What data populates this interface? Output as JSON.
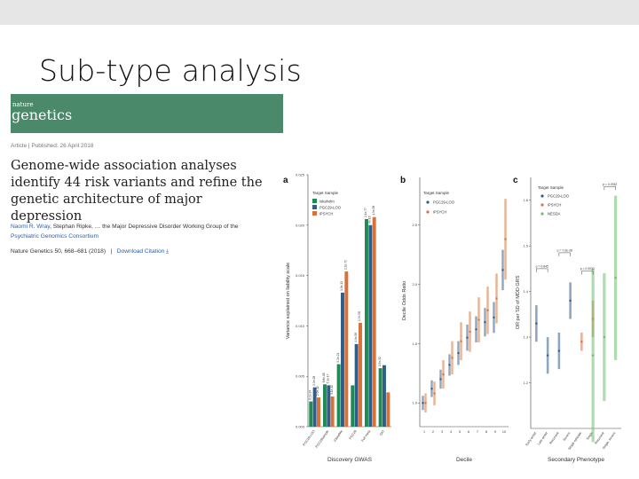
{
  "slide": {
    "title": "Sub-type analysis"
  },
  "paper": {
    "journal_small": "nature",
    "journal_name": "genetics",
    "meta": "Article  |  Published: 26 April 2018",
    "title": "Genome-wide association analyses identify 44 risk variants and refine the genetic architecture of major depression",
    "authors_prefix": "Naomi R. Wray",
    "authors_mid": ", Stephan Ripke, … the Major Depressive Disorder Working Group of the",
    "consortium": "Psychiatric Genomics Consortium",
    "journal_ref": "Nature Genetics 50, 668–681 (2018)",
    "download": "Download Citation ⤓"
  },
  "colors": {
    "banner": "#4a8a6a",
    "green": "#1f8a52",
    "blue": "#2e5f8a",
    "orange": "#d9723a"
  },
  "panels": {
    "a": {
      "letter": "a"
    },
    "b": {
      "letter": "b"
    },
    "c": {
      "letter": "c"
    }
  },
  "chart_data": [
    {
      "type": "bar",
      "panel": "a",
      "xlabel": "Discovery GWAS",
      "ylabel": "Variance explained on liability scale",
      "ylim": [
        0,
        0.025
      ],
      "yticks": [
        "0.000",
        "0.005",
        "0.010",
        "0.015",
        "0.020",
        "0.025"
      ],
      "legend_title": "Target Sample",
      "legend_position": "top-left",
      "categories": [
        "PGC29-LOO",
        "PGC29sample",
        "23andMe",
        "PGC29",
        "Full meta",
        "GIO"
      ],
      "series": [
        {
          "name": "Iskaholm",
          "color": "#1f8a52",
          "values": [
            0.0025,
            0.0042,
            0.0062,
            0.0041,
            0.0206,
            0.0058
          ]
        },
        {
          "name": "PGC29-LOO",
          "color": "#2e5f8a",
          "values": [
            0.0039,
            0.0041,
            0.0133,
            0.0082,
            0.02,
            0.0061
          ]
        },
        {
          "name": "iPSYCH",
          "color": "#d9723a",
          "values": [
            0.0029,
            0.003,
            0.0154,
            0.0103,
            0.0208,
            0.0034
          ]
        }
      ],
      "annotations": [
        "6.2e-24",
        "9.9e-28",
        "2.9e-12",
        "8.8e-08",
        "5.1e-17",
        "3.1e-42",
        "5.2e-21",
        "1.5e-13",
        "2.2e-72",
        "4.9e-58",
        "1.7e-58",
        "2.1e-77",
        "4e-16",
        "1.9e-38",
        "2.5e-32"
      ]
    },
    {
      "type": "scatter",
      "panel": "b",
      "xlabel": "Decile",
      "ylabel": "Decile Odds Ratio",
      "xlim": [
        0.5,
        10.5
      ],
      "ylim": [
        0.8,
        2.9
      ],
      "yticks": [
        "1.0",
        "1.5",
        "2.0",
        "2.5"
      ],
      "legend_title": "Target Sample",
      "legend_position": "top-left",
      "x": [
        1,
        2,
        3,
        4,
        5,
        6,
        7,
        8,
        9,
        10
      ],
      "series": [
        {
          "name": "PGC29-LOO",
          "color": "#2e5f8a",
          "values": [
            1.0,
            1.12,
            1.2,
            1.32,
            1.42,
            1.55,
            1.62,
            1.68,
            1.72,
            2.12
          ],
          "err": [
            0.06,
            0.07,
            0.08,
            0.09,
            0.1,
            0.11,
            0.11,
            0.12,
            0.13,
            0.17
          ]
        },
        {
          "name": "iPSYCH",
          "color": "#d9723a",
          "values": [
            1.0,
            1.08,
            1.24,
            1.38,
            1.52,
            1.6,
            1.7,
            1.78,
            1.88,
            2.38
          ],
          "err": [
            0.08,
            0.1,
            0.12,
            0.14,
            0.16,
            0.17,
            0.19,
            0.2,
            0.21,
            0.34
          ]
        }
      ]
    },
    {
      "type": "scatter",
      "panel": "c",
      "xlabel": "Secondary Phenotype",
      "ylabel": "OR per SD of MDD GRS",
      "ylim": [
        1.1,
        1.65
      ],
      "yticks": [
        "1.2",
        "1.3",
        "1.4",
        "1.5",
        "1.6"
      ],
      "legend_title": "Target Sample",
      "legend_position": "top-left",
      "categories": [
        "Early onset",
        "Late onset",
        "Recurrent",
        "Severe",
        "Single episode",
        "Single",
        "Recurrent",
        "Single, severe"
      ],
      "series": [
        {
          "name": "PGC29-LOO",
          "color": "#2e5f8a",
          "points": [
            {
              "cat": 0,
              "value": 1.33,
              "err": 0.04
            },
            {
              "cat": 1,
              "value": 1.26,
              "err": 0.04
            },
            {
              "cat": 2,
              "value": 1.27,
              "err": 0.04
            },
            {
              "cat": 3,
              "value": 1.38,
              "err": 0.04
            }
          ]
        },
        {
          "name": "iPSYCH",
          "color": "#d9723a",
          "points": [
            {
              "cat": 4,
              "value": 1.29,
              "err": 0.02
            },
            {
              "cat": 5,
              "value": 1.34,
              "err": 0.04
            }
          ]
        },
        {
          "name": "NESDA",
          "color": "#6bbf6b",
          "points": [
            {
              "cat": 5,
              "value": 1.26,
              "err": 0.19
            },
            {
              "cat": 6,
              "value": 1.3,
              "err": 0.14
            },
            {
              "cat": 7,
              "value": 1.43,
              "err": 0.18
            }
          ]
        }
      ],
      "annotations": [
        "p = 0.845",
        "p = 7.0e-28",
        "p = 0.0032",
        "p = 0.0332"
      ]
    }
  ]
}
